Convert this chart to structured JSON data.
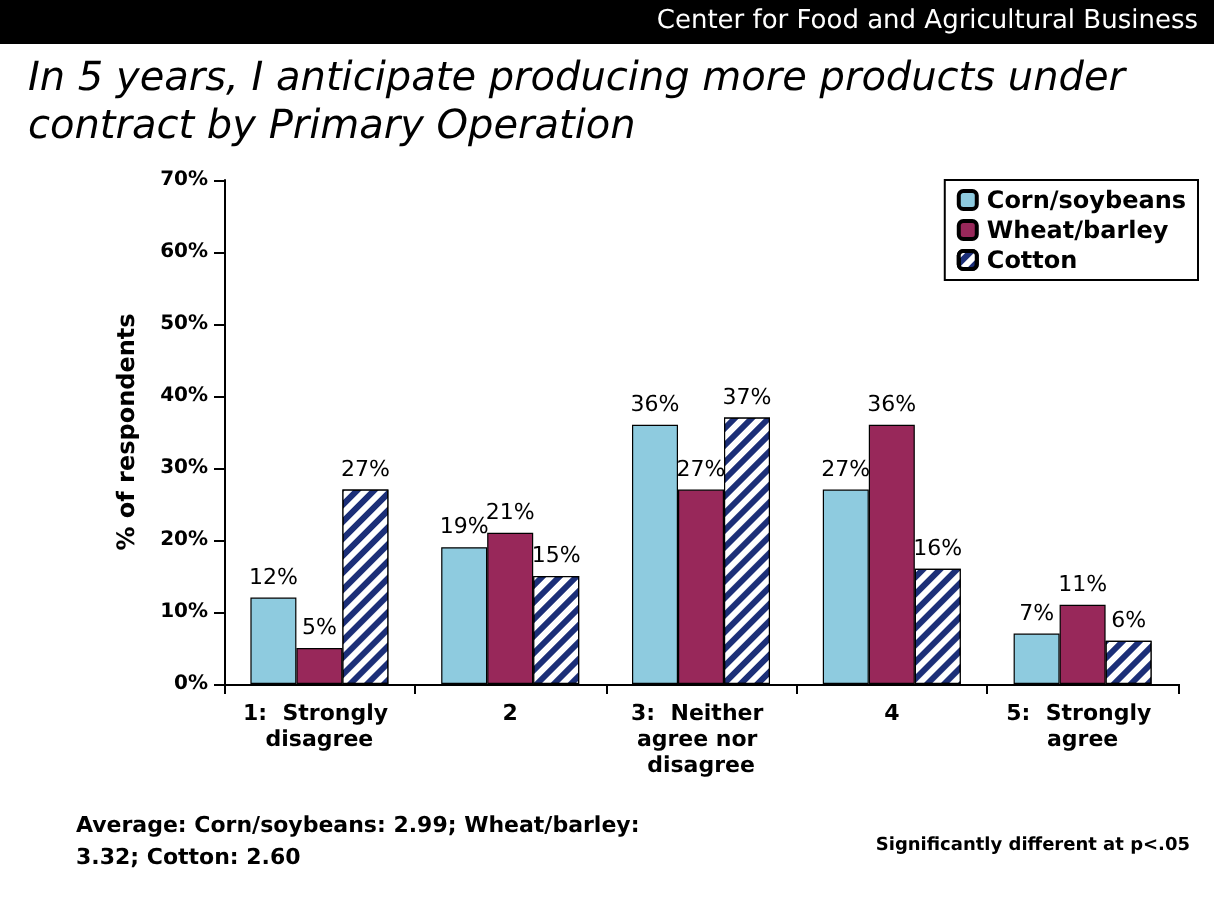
{
  "chart_data": {
    "type": "bar",
    "title": "In 5 years, I anticipate producing more products under contract by Primary Operation",
    "ylabel": "% of respondents",
    "annotations": [
      "Center for Food and Agricultural Business",
      "Average:  Corn/soybeans: 2.99; Wheat/barley: 3.32; Cotton: 2.60",
      "Significantly different at p<.05"
    ],
    "categories": [
      "1:  Strongly disagree",
      "2",
      "3:  Neither agree nor disagree",
      "4",
      "5:  Strongly agree"
    ],
    "series": [
      {
        "name": "Corn/soybeans",
        "color": "#8ecbdf",
        "values": [
          12,
          19,
          36,
          27,
          7
        ],
        "value_labels": [
          "12%",
          "19%",
          "36%",
          "27%",
          "7%"
        ]
      },
      {
        "name": "Wheat/barley",
        "color": "#98285a",
        "values": [
          5,
          21,
          27,
          36,
          11
        ],
        "value_labels": [
          "5%",
          "21%",
          "27%",
          "36%",
          "11%"
        ]
      },
      {
        "name": "Cotton",
        "color": "#1c2f78",
        "values": [
          27,
          15,
          37,
          16,
          6
        ],
        "value_labels": [
          "27%",
          "15%",
          "37%",
          "16%",
          "6%"
        ]
      }
    ],
    "ylim": [
      0,
      70
    ],
    "yticks": [
      {
        "value": 0,
        "label": "0%"
      },
      {
        "value": 10,
        "label": "10%"
      },
      {
        "value": 20,
        "label": "20%"
      },
      {
        "value": 30,
        "label": "30%"
      },
      {
        "value": 40,
        "label": "40%"
      },
      {
        "value": 50,
        "label": "50%"
      },
      {
        "value": 60,
        "label": "60%"
      },
      {
        "value": 70,
        "label": "70%"
      }
    ],
    "grid": false,
    "legend": "top right"
  }
}
